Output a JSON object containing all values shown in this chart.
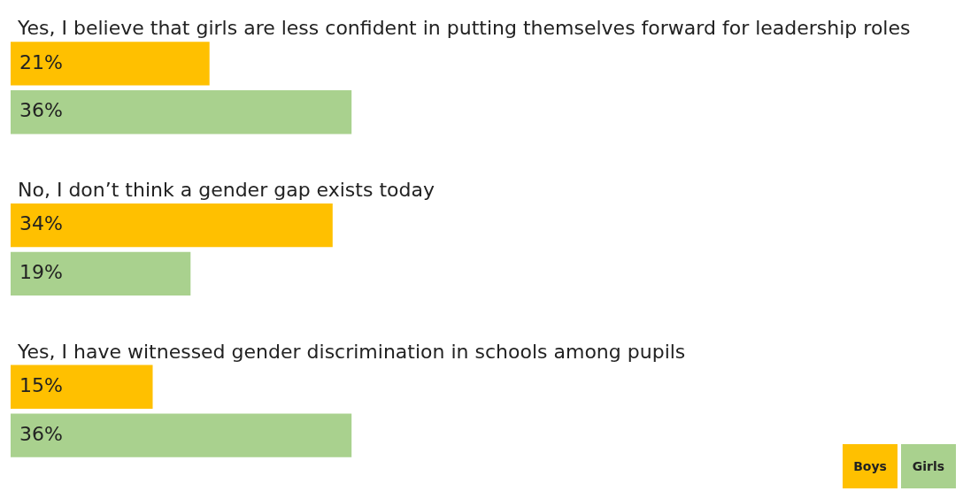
{
  "chart_data": {
    "type": "bar",
    "orientation": "horizontal",
    "categories": [
      "Yes, I believe that girls are less confident in putting themselves forward for leadership roles",
      "No, I don’t think a gender gap exists today",
      "Yes, I have witnessed gender discrimination in schools among pupils"
    ],
    "series": [
      {
        "name": "Boys",
        "color": "#ffc000",
        "values": [
          21,
          34,
          15
        ],
        "value_labels": [
          "21%",
          "34%",
          "15%"
        ]
      },
      {
        "name": "Girls",
        "color": "#a9d18e",
        "values": [
          36,
          19,
          36
        ],
        "value_labels": [
          "36%",
          "19%",
          "36%"
        ]
      }
    ],
    "legend": "bottom right"
  }
}
